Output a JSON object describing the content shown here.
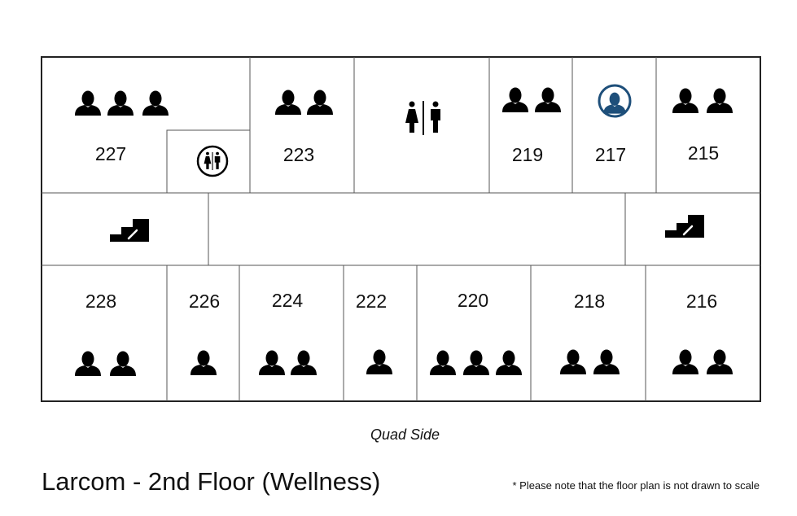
{
  "title": "Larcom - 2nd Floor (Wellness)",
  "side_label": "Quad Side",
  "note": "* Please note that the floor plan is not drawn to scale",
  "colors": {
    "icon": "#000000",
    "highlight": "#1e4f7a",
    "line": "#333333"
  },
  "rooms": [
    {
      "number": "227",
      "occupants": 3,
      "row": "top"
    },
    {
      "number": "",
      "type": "restroom-small",
      "row": "top"
    },
    {
      "number": "223",
      "occupants": 2,
      "row": "top"
    },
    {
      "number": "",
      "type": "restroom",
      "row": "top"
    },
    {
      "number": "219",
      "occupants": 2,
      "row": "top"
    },
    {
      "number": "217",
      "occupants": 1,
      "accessible": true,
      "row": "top"
    },
    {
      "number": "215",
      "occupants": 2,
      "row": "top"
    },
    {
      "number": "228",
      "occupants": 2,
      "row": "bottom"
    },
    {
      "number": "226",
      "occupants": 1,
      "row": "bottom"
    },
    {
      "number": "224",
      "occupants": 2,
      "row": "bottom"
    },
    {
      "number": "222",
      "occupants": 1,
      "row": "bottom"
    },
    {
      "number": "220",
      "occupants": 3,
      "row": "bottom"
    },
    {
      "number": "218",
      "occupants": 2,
      "row": "bottom"
    },
    {
      "number": "216",
      "occupants": 2,
      "row": "bottom"
    }
  ],
  "stairs": [
    {
      "side": "left",
      "icon": "stairs-icon"
    },
    {
      "side": "right",
      "icon": "stairs-icon"
    }
  ]
}
